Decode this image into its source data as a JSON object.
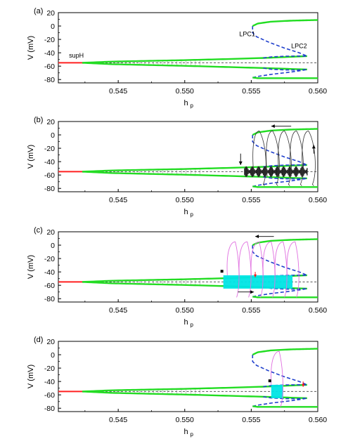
{
  "chart_data": [
    {
      "type": "line",
      "panel": "(a)",
      "xlabel": "h",
      "xlabel_sub": "p",
      "ylabel": "V (mV)",
      "xlim": [
        0.5405,
        0.56
      ],
      "ylim": [
        -85,
        20
      ],
      "xticks": [
        "0.545",
        "0.550",
        "0.555",
        "0.560"
      ],
      "yticks": [
        "20",
        "0",
        "-20",
        "-40",
        "-60",
        "-80"
      ],
      "annotations": [
        "supH",
        "LPC1",
        "LPC2"
      ],
      "overlay": "none"
    },
    {
      "type": "line",
      "panel": "(b)",
      "xlabel": "h",
      "xlabel_sub": "p",
      "ylabel": "V (mV)",
      "xlim": [
        0.5405,
        0.56
      ],
      "ylim": [
        -85,
        20
      ],
      "xticks": [
        "0.545",
        "0.550",
        "0.555",
        "0.560"
      ],
      "yticks": [
        "20",
        "0",
        "-20",
        "-40",
        "-60",
        "-80"
      ],
      "annotations": [],
      "overlay": "black-trajectory",
      "overlay_color": "#222222",
      "overlay_range": [
        0.5545,
        0.5592
      ],
      "bursts": [
        0.5552,
        0.5562,
        0.5571,
        0.558,
        0.5589
      ]
    },
    {
      "type": "line",
      "panel": "(c)",
      "xlabel": "h",
      "xlabel_sub": "p",
      "ylabel": "V (mV)",
      "xlim": [
        0.5405,
        0.56
      ],
      "ylim": [
        -85,
        20
      ],
      "xticks": [
        "0.545",
        "0.550",
        "0.555",
        "0.560"
      ],
      "yticks": [
        "20",
        "0",
        "-20",
        "-40",
        "-60",
        "-80"
      ],
      "annotations": [],
      "overlay": "cyan-magenta",
      "overlay_color": "#00e5e5",
      "trajectory_color": "#e070e0",
      "overlay_range": [
        0.5529,
        0.5581
      ],
      "bursts": [
        0.5535,
        0.5544,
        0.5553,
        0.5562,
        0.5571,
        0.558
      ]
    },
    {
      "type": "line",
      "panel": "(d)",
      "xlabel": "h",
      "xlabel_sub": "p",
      "ylabel": "V (mV)",
      "xlim": [
        0.5405,
        0.56
      ],
      "ylim": [
        -85,
        20
      ],
      "xticks": [
        "0.545",
        "0.550",
        "0.555",
        "0.560"
      ],
      "yticks": [
        "20",
        "0",
        "-20",
        "-40",
        "-60",
        "-80"
      ],
      "annotations": [],
      "overlay": "cyan-magenta",
      "overlay_color": "#00e5e5",
      "trajectory_color": "#e070e0",
      "overlay_range": [
        0.5565,
        0.5574
      ],
      "bursts": [
        0.5568
      ]
    }
  ],
  "curves": {
    "rest_equilibrium": {
      "color": "#ff2020",
      "x": [
        0.5405,
        0.5423
      ],
      "y": [
        -55,
        -55
      ]
    },
    "unstable_equilibrium": {
      "color": "#333333",
      "style": "dashed",
      "x": [
        0.5423,
        0.56
      ],
      "y": [
        -55,
        -55
      ]
    },
    "stable_cycle_upper": {
      "color": "#22dd22",
      "x": [
        0.5423,
        0.5445,
        0.547,
        0.55,
        0.553,
        0.5559,
        0.5592
      ],
      "y": [
        -55,
        -53.2,
        -52.2,
        -51,
        -49.5,
        -47.8,
        -45
      ]
    },
    "stable_cycle_lower": {
      "color": "#22dd22",
      "x": [
        0.5423,
        0.5445,
        0.547,
        0.55,
        0.553,
        0.5559,
        0.5592
      ],
      "y": [
        -55,
        -57,
        -58.2,
        -59.5,
        -61.2,
        -62.8,
        -65
      ]
    },
    "unstable_cycle_upper": {
      "color": "#1f3fcc",
      "style": "dashed",
      "x": [
        0.5559,
        0.5565,
        0.5575,
        0.5585,
        0.5592
      ],
      "y": [
        -47.8,
        -46.2,
        -45.2,
        -44.9,
        -45
      ]
    },
    "unstable_cycle_lower": {
      "color": "#1f3fcc",
      "style": "dashed",
      "x": [
        0.5559,
        0.5565,
        0.5575,
        0.5585,
        0.5592
      ],
      "y": [
        -62.8,
        -64.6,
        -65.6,
        -65.8,
        -65
      ]
    },
    "big_cycle_max": {
      "color": "#22dd22",
      "x": [
        0.5551,
        0.5555,
        0.5565,
        0.558,
        0.56
      ],
      "y": [
        0,
        3.8,
        6.5,
        8,
        9
      ]
    },
    "big_cycle_min": {
      "color": "#22dd22",
      "x": [
        0.5551,
        0.5555,
        0.5575,
        0.56
      ],
      "y": [
        -77,
        -78,
        -78,
        -78
      ]
    },
    "connector_upper": {
      "color": "#1f3fcc",
      "style": "dashed",
      "x": [
        0.5551,
        0.5551,
        0.5554,
        0.5563,
        0.5575,
        0.5586,
        0.5592
      ],
      "y": [
        0,
        -10,
        -16,
        -24,
        -33,
        -40,
        -45
      ]
    },
    "connector_lower": {
      "color": "#1f3fcc",
      "style": "dashed",
      "x": [
        0.5551,
        0.5556,
        0.5566,
        0.5579,
        0.5588,
        0.5592
      ],
      "y": [
        -77,
        -75,
        -72,
        -69,
        -66.5,
        -65
      ]
    }
  },
  "colors": {
    "axis": "#000000",
    "arrow": "#000000",
    "red_arrow": "#ff1010",
    "marker": "#000000"
  }
}
